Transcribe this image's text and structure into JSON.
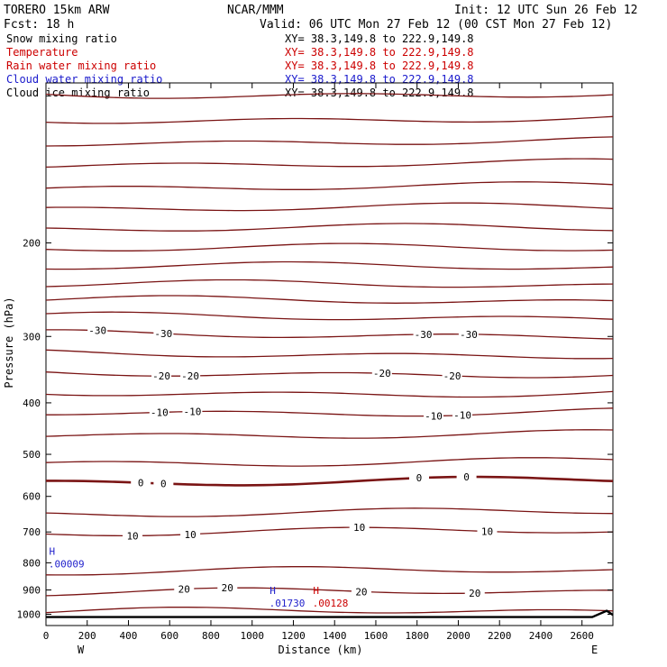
{
  "header": {
    "model": "TORERO  15km ARW",
    "center": "NCAR/MMM",
    "init": "Init: 12 UTC Sun 26 Feb 12",
    "fcst": "Fcst:   18 h",
    "valid": "Valid: 06 UTC Mon 27 Feb 12 (00 CST Mon 27 Feb 12)"
  },
  "colors": {
    "snow": "#000000",
    "temperature": "#cc0000",
    "rain": "#cc0000",
    "cloud_water": "#1a1acc",
    "cloud_ice": "#000000",
    "isotherm": "#7a1414",
    "rain_contour": "#b41e1e",
    "cloud_contour": "#2222cc",
    "terrain": "#000000"
  },
  "legend": [
    {
      "name": "Snow mixing ratio",
      "xy": "XY=  38.3,149.8 to 222.9,149.8",
      "color": "#000000"
    },
    {
      "name": "Temperature",
      "xy": "XY=  38.3,149.8 to 222.9,149.8",
      "color": "#cc0000"
    },
    {
      "name": "Rain water mixing ratio",
      "xy": "XY=  38.3,149.8 to 222.9,149.8",
      "color": "#cc0000"
    },
    {
      "name": "Cloud water mixing ratio",
      "xy": "XY=  38.3,149.8 to 222.9,149.8",
      "color": "#1a1acc"
    },
    {
      "name": "Cloud ice mixing ratio",
      "xy": "XY=  38.3,149.8 to 222.9,149.8",
      "color": "#000000"
    }
  ],
  "chart_data": {
    "type": "line",
    "xlabel": "Distance (km)",
    "ylabel": "Pressure (hPa)",
    "xlim": [
      0,
      2750
    ],
    "ylim": [
      1050,
      100
    ],
    "y_scale": "log",
    "x_ticks": [
      "0",
      "200",
      "400",
      "600",
      "800",
      "1000",
      "1200",
      "1400",
      "1600",
      "1800",
      "2000",
      "2200",
      "2400",
      "2600"
    ],
    "y_ticks": [
      "200",
      "300",
      "400",
      "500",
      "600",
      "700",
      "800",
      "900",
      "1000"
    ],
    "x_end_labels": {
      "left": "W",
      "right": "E"
    },
    "isotherms": [
      {
        "p": 105
      },
      {
        "p": 117
      },
      {
        "p": 129
      },
      {
        "p": 142
      },
      {
        "p": 157
      },
      {
        "p": 172
      },
      {
        "p": 188
      },
      {
        "p": 205
      },
      {
        "p": 222
      },
      {
        "p": 240
      },
      {
        "p": 257
      },
      {
        "p": 276
      },
      {
        "p": 298,
        "label": "-30",
        "label_x": [
          250,
          570,
          1830,
          2050
        ]
      },
      {
        "p": 324
      },
      {
        "p": 352,
        "label": "-20",
        "label_x": [
          560,
          700,
          1630,
          1970
        ]
      },
      {
        "p": 383
      },
      {
        "p": 416,
        "label": "-10",
        "label_x": [
          550,
          710,
          1880,
          2020
        ]
      },
      {
        "p": 458
      },
      {
        "p": 517
      },
      {
        "p": 562,
        "label": "0",
        "label_x": [
          460,
          570,
          1810,
          2040
        ],
        "bold": true
      },
      {
        "p": 644
      },
      {
        "p": 700,
        "label": "10",
        "label_x": [
          420,
          700,
          1520,
          2140
        ]
      },
      {
        "p": 830
      },
      {
        "p": 910,
        "label": "20",
        "label_x": [
          670,
          880,
          1530,
          2080
        ]
      },
      {
        "p": 990
      }
    ],
    "cloud_maxima": [
      {
        "x": 30,
        "p": 785,
        "marker": "H",
        "value": ".00009",
        "color": "#2222cc"
      },
      {
        "x": 1100,
        "p": 930,
        "marker": "H",
        "value": ".01730",
        "color": "#2222cc"
      },
      {
        "x": 1310,
        "p": 930,
        "marker": "H",
        "value": ".00128",
        "color": "#cc0000"
      }
    ],
    "terrain": [
      {
        "x": 0,
        "p": 1012
      },
      {
        "x": 2650,
        "p": 1012
      },
      {
        "x": 2720,
        "p": 985
      },
      {
        "x": 2750,
        "p": 1003
      }
    ]
  }
}
